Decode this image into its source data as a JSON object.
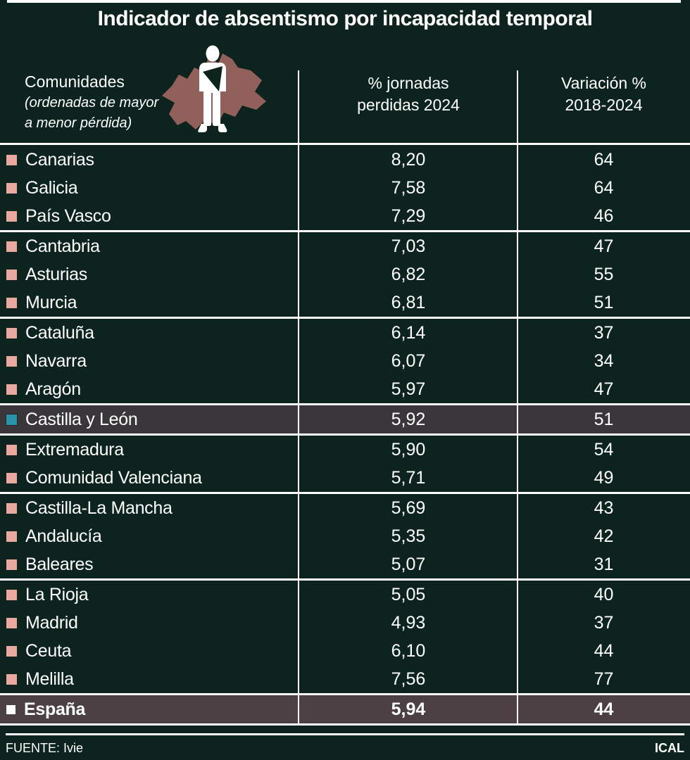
{
  "title": "Indicador de absentismo por incapacidad temporal",
  "header": {
    "col1_title": "Comunidades",
    "col1_subtitle": "(ordenadas de mayor\na menor pérdida)",
    "col2": "% jornadas\nperdidas 2024",
    "col3": "Variación %\n2018-2024"
  },
  "icons": {
    "map_icon": "castilla-y-leon-map",
    "person_icon": "injured-person-with-arm-sling"
  },
  "colors": {
    "bg": "#0d231e",
    "text": "#ffffff",
    "pink": "#e9a9a1",
    "teal": "#2b93a9",
    "hl-region": "#3a373b",
    "hl-spain": "#4c4045",
    "map": "#92605a",
    "line": "#ffffff"
  },
  "chart_data": {
    "type": "table",
    "title": "Indicador de absentismo por incapacidad temporal",
    "columns": [
      "Comunidades (ordenadas de mayor a menor pérdida)",
      "% jornadas perdidas 2024",
      "Variación % 2018-2024"
    ],
    "rows": [
      {
        "name": "Canarias",
        "jornadas": "8,20",
        "variacion": "64",
        "bullet": "pink",
        "highlight": null,
        "separator_after": false
      },
      {
        "name": "Galicia",
        "jornadas": "7,58",
        "variacion": "64",
        "bullet": "pink",
        "highlight": null,
        "separator_after": false
      },
      {
        "name": "País Vasco",
        "jornadas": "7,29",
        "variacion": "46",
        "bullet": "pink",
        "highlight": null,
        "separator_after": true
      },
      {
        "name": "Cantabria",
        "jornadas": "7,03",
        "variacion": "47",
        "bullet": "pink",
        "highlight": null,
        "separator_after": false
      },
      {
        "name": "Asturias",
        "jornadas": "6,82",
        "variacion": "55",
        "bullet": "pink",
        "highlight": null,
        "separator_after": false
      },
      {
        "name": "Murcia",
        "jornadas": "6,81",
        "variacion": "51",
        "bullet": "pink",
        "highlight": null,
        "separator_after": true
      },
      {
        "name": "Cataluña",
        "jornadas": "6,14",
        "variacion": "37",
        "bullet": "pink",
        "highlight": null,
        "separator_after": false
      },
      {
        "name": "Navarra",
        "jornadas": "6,07",
        "variacion": "34",
        "bullet": "pink",
        "highlight": null,
        "separator_after": false
      },
      {
        "name": "Aragón",
        "jornadas": "5,97",
        "variacion": "47",
        "bullet": "pink",
        "highlight": null,
        "separator_after": true
      },
      {
        "name": "Castilla y León",
        "jornadas": "5,92",
        "variacion": "51",
        "bullet": "teal",
        "highlight": "region",
        "separator_after": true
      },
      {
        "name": "Extremadura",
        "jornadas": "5,90",
        "variacion": "54",
        "bullet": "pink",
        "highlight": null,
        "separator_after": false
      },
      {
        "name": "Comunidad Valenciana",
        "jornadas": "5,71",
        "variacion": "49",
        "bullet": "pink",
        "highlight": null,
        "separator_after": true
      },
      {
        "name": "Castilla-La Mancha",
        "jornadas": "5,69",
        "variacion": "43",
        "bullet": "pink",
        "highlight": null,
        "separator_after": false
      },
      {
        "name": "Andalucía",
        "jornadas": "5,35",
        "variacion": "42",
        "bullet": "pink",
        "highlight": null,
        "separator_after": false
      },
      {
        "name": "Baleares",
        "jornadas": "5,07",
        "variacion": "31",
        "bullet": "pink",
        "highlight": null,
        "separator_after": true
      },
      {
        "name": "La Rioja",
        "jornadas": "5,05",
        "variacion": "40",
        "bullet": "pink",
        "highlight": null,
        "separator_after": false
      },
      {
        "name": "Madrid",
        "jornadas": "4,93",
        "variacion": "37",
        "bullet": "pink",
        "highlight": null,
        "separator_after": false
      },
      {
        "name": "Ceuta",
        "jornadas": "6,10",
        "variacion": "44",
        "bullet": "pink",
        "highlight": null,
        "separator_after": false
      },
      {
        "name": "Melilla",
        "jornadas": "7,56",
        "variacion": "77",
        "bullet": "pink",
        "highlight": null,
        "separator_after": true
      },
      {
        "name": "España",
        "jornadas": "5,94",
        "variacion": "44",
        "bullet": "white",
        "highlight": "spain",
        "separator_after": true
      }
    ]
  },
  "footer": {
    "source_label": "FUENTE: Ivie",
    "credit_label": "ICAL"
  }
}
